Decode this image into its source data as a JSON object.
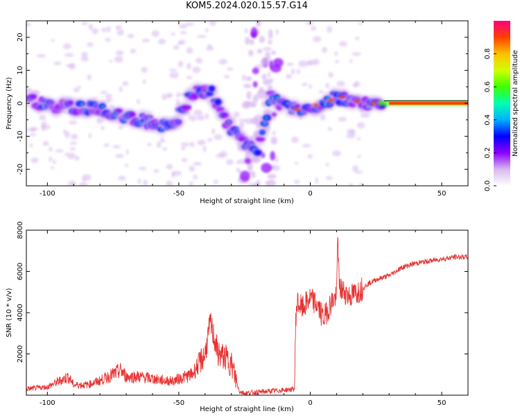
{
  "title": "KOM5.2024.020.15.57.G14",
  "chart_data": [
    {
      "type": "heatmap",
      "xlabel": "Height of straight line (km)",
      "ylabel": "Frequency (Hz)",
      "xlim": [
        -108,
        60
      ],
      "ylim": [
        -25,
        25
      ],
      "xticks": [
        -100,
        -50,
        0,
        50
      ],
      "yticks": [
        -20,
        -10,
        0,
        10,
        20
      ],
      "colorbar": {
        "label": "Normalized spectral amplitude",
        "range": [
          0.0,
          1.0
        ],
        "ticks": [
          "0.0",
          "0.2",
          "0.4",
          "0.6",
          "0.8"
        ],
        "colors": [
          "#ffffff",
          "#d8b8f0",
          "#8c00ff",
          "#0000ff",
          "#00b0ff",
          "#00ffb0",
          "#40ff00",
          "#d0ff00",
          "#ffc000",
          "#ff4000",
          "#ff0080"
        ]
      },
      "ridge": [
        {
          "x": -107,
          "y": 1
        },
        {
          "x": -100,
          "y": -1
        },
        {
          "x": -90,
          "y": -1
        },
        {
          "x": -80,
          "y": -2
        },
        {
          "x": -70,
          "y": -4
        },
        {
          "x": -60,
          "y": -6
        },
        {
          "x": -52,
          "y": -7
        },
        {
          "x": -45,
          "y": 3
        },
        {
          "x": -38,
          "y": 4
        },
        {
          "x": -30,
          "y": -8
        },
        {
          "x": -20,
          "y": -15
        },
        {
          "x": -15,
          "y": 2
        },
        {
          "x": -10,
          "y": -1
        },
        {
          "x": -5,
          "y": -2
        },
        {
          "x": 0,
          "y": -1
        },
        {
          "x": 5,
          "y": 0
        },
        {
          "x": 10,
          "y": 2
        },
        {
          "x": 15,
          "y": 1
        },
        {
          "x": 20,
          "y": 0
        },
        {
          "x": 30,
          "y": 0
        },
        {
          "x": 60,
          "y": 0
        }
      ]
    },
    {
      "type": "line",
      "xlabel": "Height of straight line (km)",
      "ylabel": "SNR (10 * v/v)",
      "xlim": [
        -108,
        60
      ],
      "ylim": [
        0,
        8000
      ],
      "xticks": [
        -100,
        -50,
        0,
        50
      ],
      "yticks": [
        2000,
        4000,
        6000,
        8000
      ],
      "color": "#e83030",
      "series": [
        {
          "x": [
            -108,
            -100,
            -92,
            -90,
            -85,
            -80,
            -72,
            -70,
            -65,
            -60,
            -55,
            -52,
            -50,
            -45,
            -40,
            -38,
            -35,
            -32,
            -30,
            -27,
            -25,
            -20,
            -15,
            -10,
            -6,
            -5.5,
            -5,
            -3,
            0,
            3,
            5,
            8,
            10,
            10.5,
            11,
            13,
            15,
            18,
            20,
            22,
            25,
            30,
            35,
            40,
            45,
            50,
            55,
            60
          ],
          "y": [
            300,
            400,
            900,
            500,
            500,
            700,
            1200,
            900,
            900,
            800,
            700,
            700,
            800,
            1000,
            2000,
            3500,
            2000,
            1800,
            1500,
            200,
            100,
            150,
            200,
            250,
            300,
            3800,
            4500,
            4200,
            4700,
            4300,
            3700,
            4500,
            4800,
            8000,
            5200,
            5000,
            4800,
            5000,
            5200,
            5400,
            5600,
            5800,
            6200,
            6400,
            6500,
            6600,
            6700,
            6700
          ]
        }
      ]
    }
  ]
}
